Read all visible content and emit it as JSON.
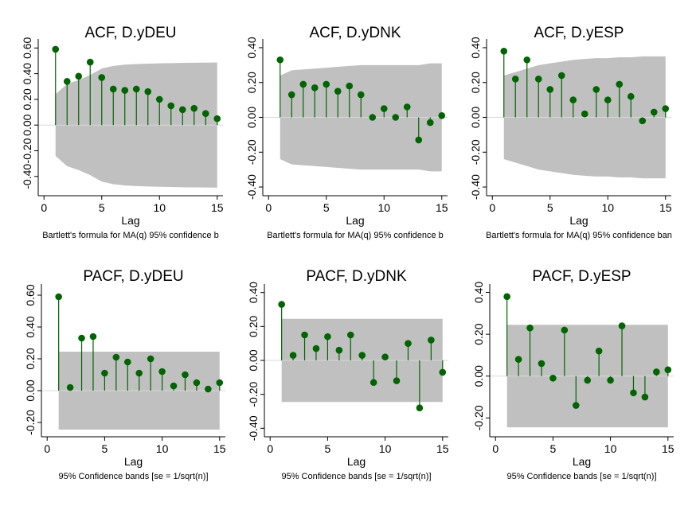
{
  "colors": {
    "band": "#c0c0c0",
    "marker": "#006400",
    "stem": "#006400",
    "axis": "#000000",
    "baseline": "#d8d8d8"
  },
  "chart_data": [
    {
      "type": "scatter",
      "title": "ACF, D.yDEU",
      "xlabel": "Lag",
      "note": "Bartlett's formula for MA(q) 95% confidence b",
      "xticks": [
        "0",
        "5",
        "10",
        "15"
      ],
      "yticks": [
        "-0.40",
        "-0.20",
        "0.00",
        "0.20",
        "0.40",
        "0.60"
      ],
      "xlim": [
        -0.5,
        15.5
      ],
      "ylim": [
        -0.55,
        0.67
      ],
      "x": [
        1,
        2,
        3,
        4,
        5,
        6,
        7,
        8,
        9,
        10,
        11,
        12,
        13,
        14,
        15
      ],
      "values": [
        0.59,
        0.34,
        0.38,
        0.49,
        0.37,
        0.28,
        0.27,
        0.28,
        0.26,
        0.2,
        0.15,
        0.12,
        0.13,
        0.09,
        0.05
      ],
      "band": {
        "x": [
          1,
          2,
          3,
          4,
          5,
          6,
          7,
          8,
          9,
          10,
          11,
          12,
          13,
          14,
          15
        ],
        "upper": [
          0.24,
          0.32,
          0.35,
          0.39,
          0.44,
          0.46,
          0.47,
          0.475,
          0.478,
          0.48,
          0.482,
          0.484,
          0.485,
          0.486,
          0.487
        ]
      }
    },
    {
      "type": "scatter",
      "title": "ACF, D.yDNK",
      "xlabel": "Lag",
      "note": "Bartlett's formula for MA(q) 95% confidence b",
      "xticks": [
        "0",
        "5",
        "10",
        "15"
      ],
      "yticks": [
        "-0.40",
        "-0.20",
        "0.00",
        "0.20",
        "0.40"
      ],
      "xlim": [
        -0.5,
        15.5
      ],
      "ylim": [
        -0.45,
        0.45
      ],
      "x": [
        1,
        2,
        3,
        4,
        5,
        6,
        7,
        8,
        9,
        10,
        11,
        12,
        13,
        14,
        15
      ],
      "values": [
        0.33,
        0.13,
        0.19,
        0.17,
        0.19,
        0.15,
        0.18,
        0.13,
        0.0,
        0.05,
        0.0,
        0.06,
        -0.13,
        -0.03,
        0.01
      ],
      "band": {
        "x": [
          1,
          2,
          3,
          4,
          5,
          6,
          7,
          8,
          9,
          10,
          11,
          12,
          13,
          14,
          15
        ],
        "upper": [
          0.24,
          0.27,
          0.275,
          0.28,
          0.285,
          0.29,
          0.295,
          0.3,
          0.3,
          0.3,
          0.3,
          0.3,
          0.3,
          0.31,
          0.31
        ]
      }
    },
    {
      "type": "scatter",
      "title": "ACF, D.yESP",
      "xlabel": "Lag",
      "note": "Bartlett's formula for MA(q) 95% confidence ban",
      "xticks": [
        "0",
        "5",
        "10",
        "15"
      ],
      "yticks": [
        "-0.40",
        "-0.20",
        "0.00",
        "0.20",
        "0.40"
      ],
      "xlim": [
        -0.5,
        15.5
      ],
      "ylim": [
        -0.45,
        0.45
      ],
      "x": [
        1,
        2,
        3,
        4,
        5,
        6,
        7,
        8,
        9,
        10,
        11,
        12,
        13,
        14,
        15
      ],
      "values": [
        0.38,
        0.22,
        0.33,
        0.22,
        0.16,
        0.24,
        0.1,
        0.02,
        0.16,
        0.1,
        0.19,
        0.12,
        -0.02,
        0.03,
        0.05
      ],
      "band": {
        "x": [
          1,
          2,
          3,
          4,
          5,
          6,
          7,
          8,
          9,
          10,
          11,
          12,
          13,
          14,
          15
        ],
        "upper": [
          0.24,
          0.26,
          0.28,
          0.3,
          0.31,
          0.32,
          0.33,
          0.335,
          0.34,
          0.34,
          0.345,
          0.345,
          0.35,
          0.35,
          0.35
        ]
      }
    },
    {
      "type": "scatter",
      "title": "PACF, D.yDEU",
      "xlabel": "Lag",
      "note": "95% Confidence bands [se = 1/sqrt(n)]",
      "xticks": [
        "0",
        "5",
        "10",
        "15"
      ],
      "yticks": [
        "-0.20",
        "0.00",
        "0.20",
        "0.40",
        "0.60"
      ],
      "xlim": [
        -0.5,
        15.5
      ],
      "ylim": [
        -0.29,
        0.67
      ],
      "x": [
        1,
        2,
        3,
        4,
        5,
        6,
        7,
        8,
        9,
        10,
        11,
        12,
        13,
        14,
        15
      ],
      "values": [
        0.59,
        0.02,
        0.33,
        0.34,
        0.11,
        0.21,
        0.18,
        0.11,
        0.2,
        0.12,
        0.03,
        0.1,
        0.05,
        0.01,
        0.05
      ],
      "band": {
        "x": [
          1,
          15
        ],
        "upper": [
          0.245,
          0.245
        ]
      }
    },
    {
      "type": "scatter",
      "title": "PACF, D.yDNK",
      "xlabel": "Lag",
      "note": "95% Confidence bands [se = 1/sqrt(n)]",
      "xticks": [
        "0",
        "5",
        "10",
        "15"
      ],
      "yticks": [
        "-0.40",
        "-0.20",
        "0.00",
        "0.20",
        "0.40"
      ],
      "xlim": [
        -0.5,
        15.5
      ],
      "ylim": [
        -0.45,
        0.45
      ],
      "x": [
        1,
        2,
        3,
        4,
        5,
        6,
        7,
        8,
        9,
        10,
        11,
        12,
        13,
        14,
        15
      ],
      "values": [
        0.33,
        0.03,
        0.15,
        0.07,
        0.14,
        0.06,
        0.15,
        0.03,
        -0.13,
        0.02,
        -0.12,
        0.1,
        -0.28,
        0.12,
        -0.07
      ],
      "band": {
        "x": [
          1,
          15
        ],
        "upper": [
          0.245,
          0.245
        ]
      }
    },
    {
      "type": "scatter",
      "title": "PACF, D.yESP",
      "xlabel": "Lag",
      "note": "95% Confidence bands [se = 1/sqrt(n)]",
      "xticks": [
        "0",
        "5",
        "10",
        "15"
      ],
      "yticks": [
        "-0.20",
        "0.00",
        "0.20",
        "0.40"
      ],
      "xlim": [
        -0.5,
        15.5
      ],
      "ylim": [
        -0.29,
        0.44
      ],
      "x": [
        1,
        2,
        3,
        4,
        5,
        6,
        7,
        8,
        9,
        10,
        11,
        12,
        13,
        14,
        15
      ],
      "values": [
        0.38,
        0.08,
        0.23,
        0.06,
        -0.01,
        0.22,
        -0.14,
        -0.02,
        0.12,
        -0.02,
        0.24,
        -0.08,
        -0.1,
        0.02,
        0.03
      ],
      "band": {
        "x": [
          1,
          15
        ],
        "upper": [
          0.245,
          0.245
        ]
      }
    }
  ]
}
